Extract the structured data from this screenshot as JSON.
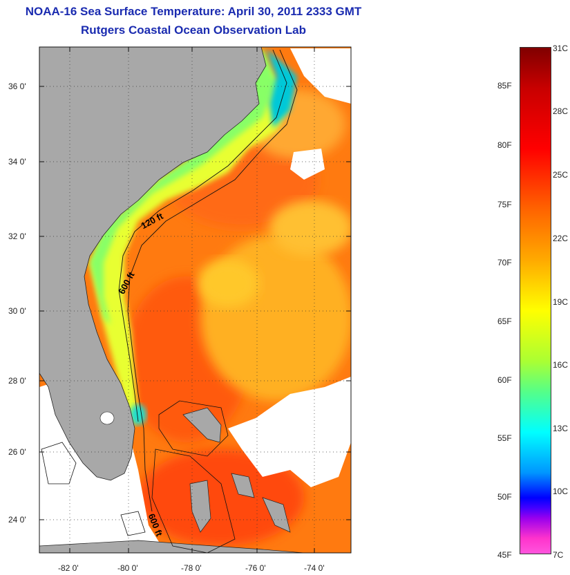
{
  "title_line1": "NOAA-16 Sea Surface Temperature:  April 30, 2011 2333 GMT",
  "title_line2": "Rutgers Coastal Ocean Observation Lab",
  "lat_labels": [
    "36 0'",
    "34 0'",
    "32 0'",
    "30 0'",
    "28 0'",
    "26 0'",
    "24 0'"
  ],
  "lon_labels": [
    "-82 0'",
    "-80 0'",
    "-78 0'",
    "-76 0'",
    "-74 0'"
  ],
  "isobath_labels": [
    "120 ft",
    "600 ft",
    "600 ft"
  ],
  "colorbar": {
    "fahrenheit": [
      "85F",
      "80F",
      "75F",
      "70F",
      "65F",
      "60F",
      "55F",
      "50F",
      "45F"
    ],
    "celsius": [
      "31C",
      "28C",
      "25C",
      "22C",
      "19C",
      "16C",
      "13C",
      "10C",
      "7C"
    ]
  },
  "colors": {
    "title": "#1a2bb0",
    "land": "#a8a8a8",
    "no_data": "#ffffff",
    "warm_water": "#ff7a10",
    "cool_water": "#f0ff30"
  }
}
